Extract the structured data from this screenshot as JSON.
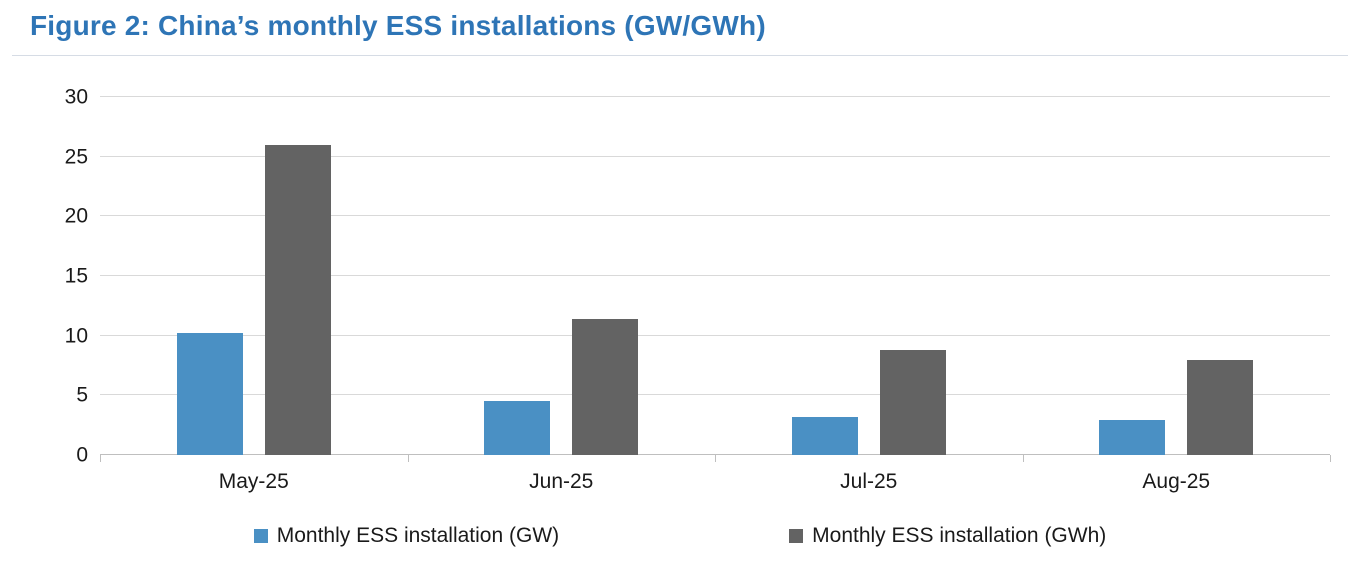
{
  "title": "Figure 2: China’s monthly ESS installations (GW/GWh)",
  "colors": {
    "title": "#2E75B6",
    "gw_bar": "#4A90C4",
    "gwh_bar": "#636363",
    "gridline": "#D9D9D9",
    "axis_line": "#BFBFBF",
    "text": "#1a1a1a"
  },
  "chart_data": {
    "type": "bar",
    "title": "Figure 2: China’s monthly ESS installations (GW/GWh)",
    "categories": [
      "May-25",
      "Jun-25",
      "Jul-25",
      "Aug-25"
    ],
    "series": [
      {
        "name": "Monthly ESS installation (GW)",
        "color": "#4A90C4",
        "values": [
          10.2,
          4.5,
          3.2,
          2.9
        ]
      },
      {
        "name": "Monthly ESS installation (GWh)",
        "color": "#636363",
        "values": [
          26.0,
          11.4,
          8.8,
          8.0
        ]
      }
    ],
    "xlabel": "",
    "ylabel": "",
    "ylim": [
      0,
      30
    ],
    "yticks": [
      0,
      5,
      10,
      15,
      20,
      25,
      30
    ],
    "grid": true,
    "legend_position": "bottom"
  }
}
